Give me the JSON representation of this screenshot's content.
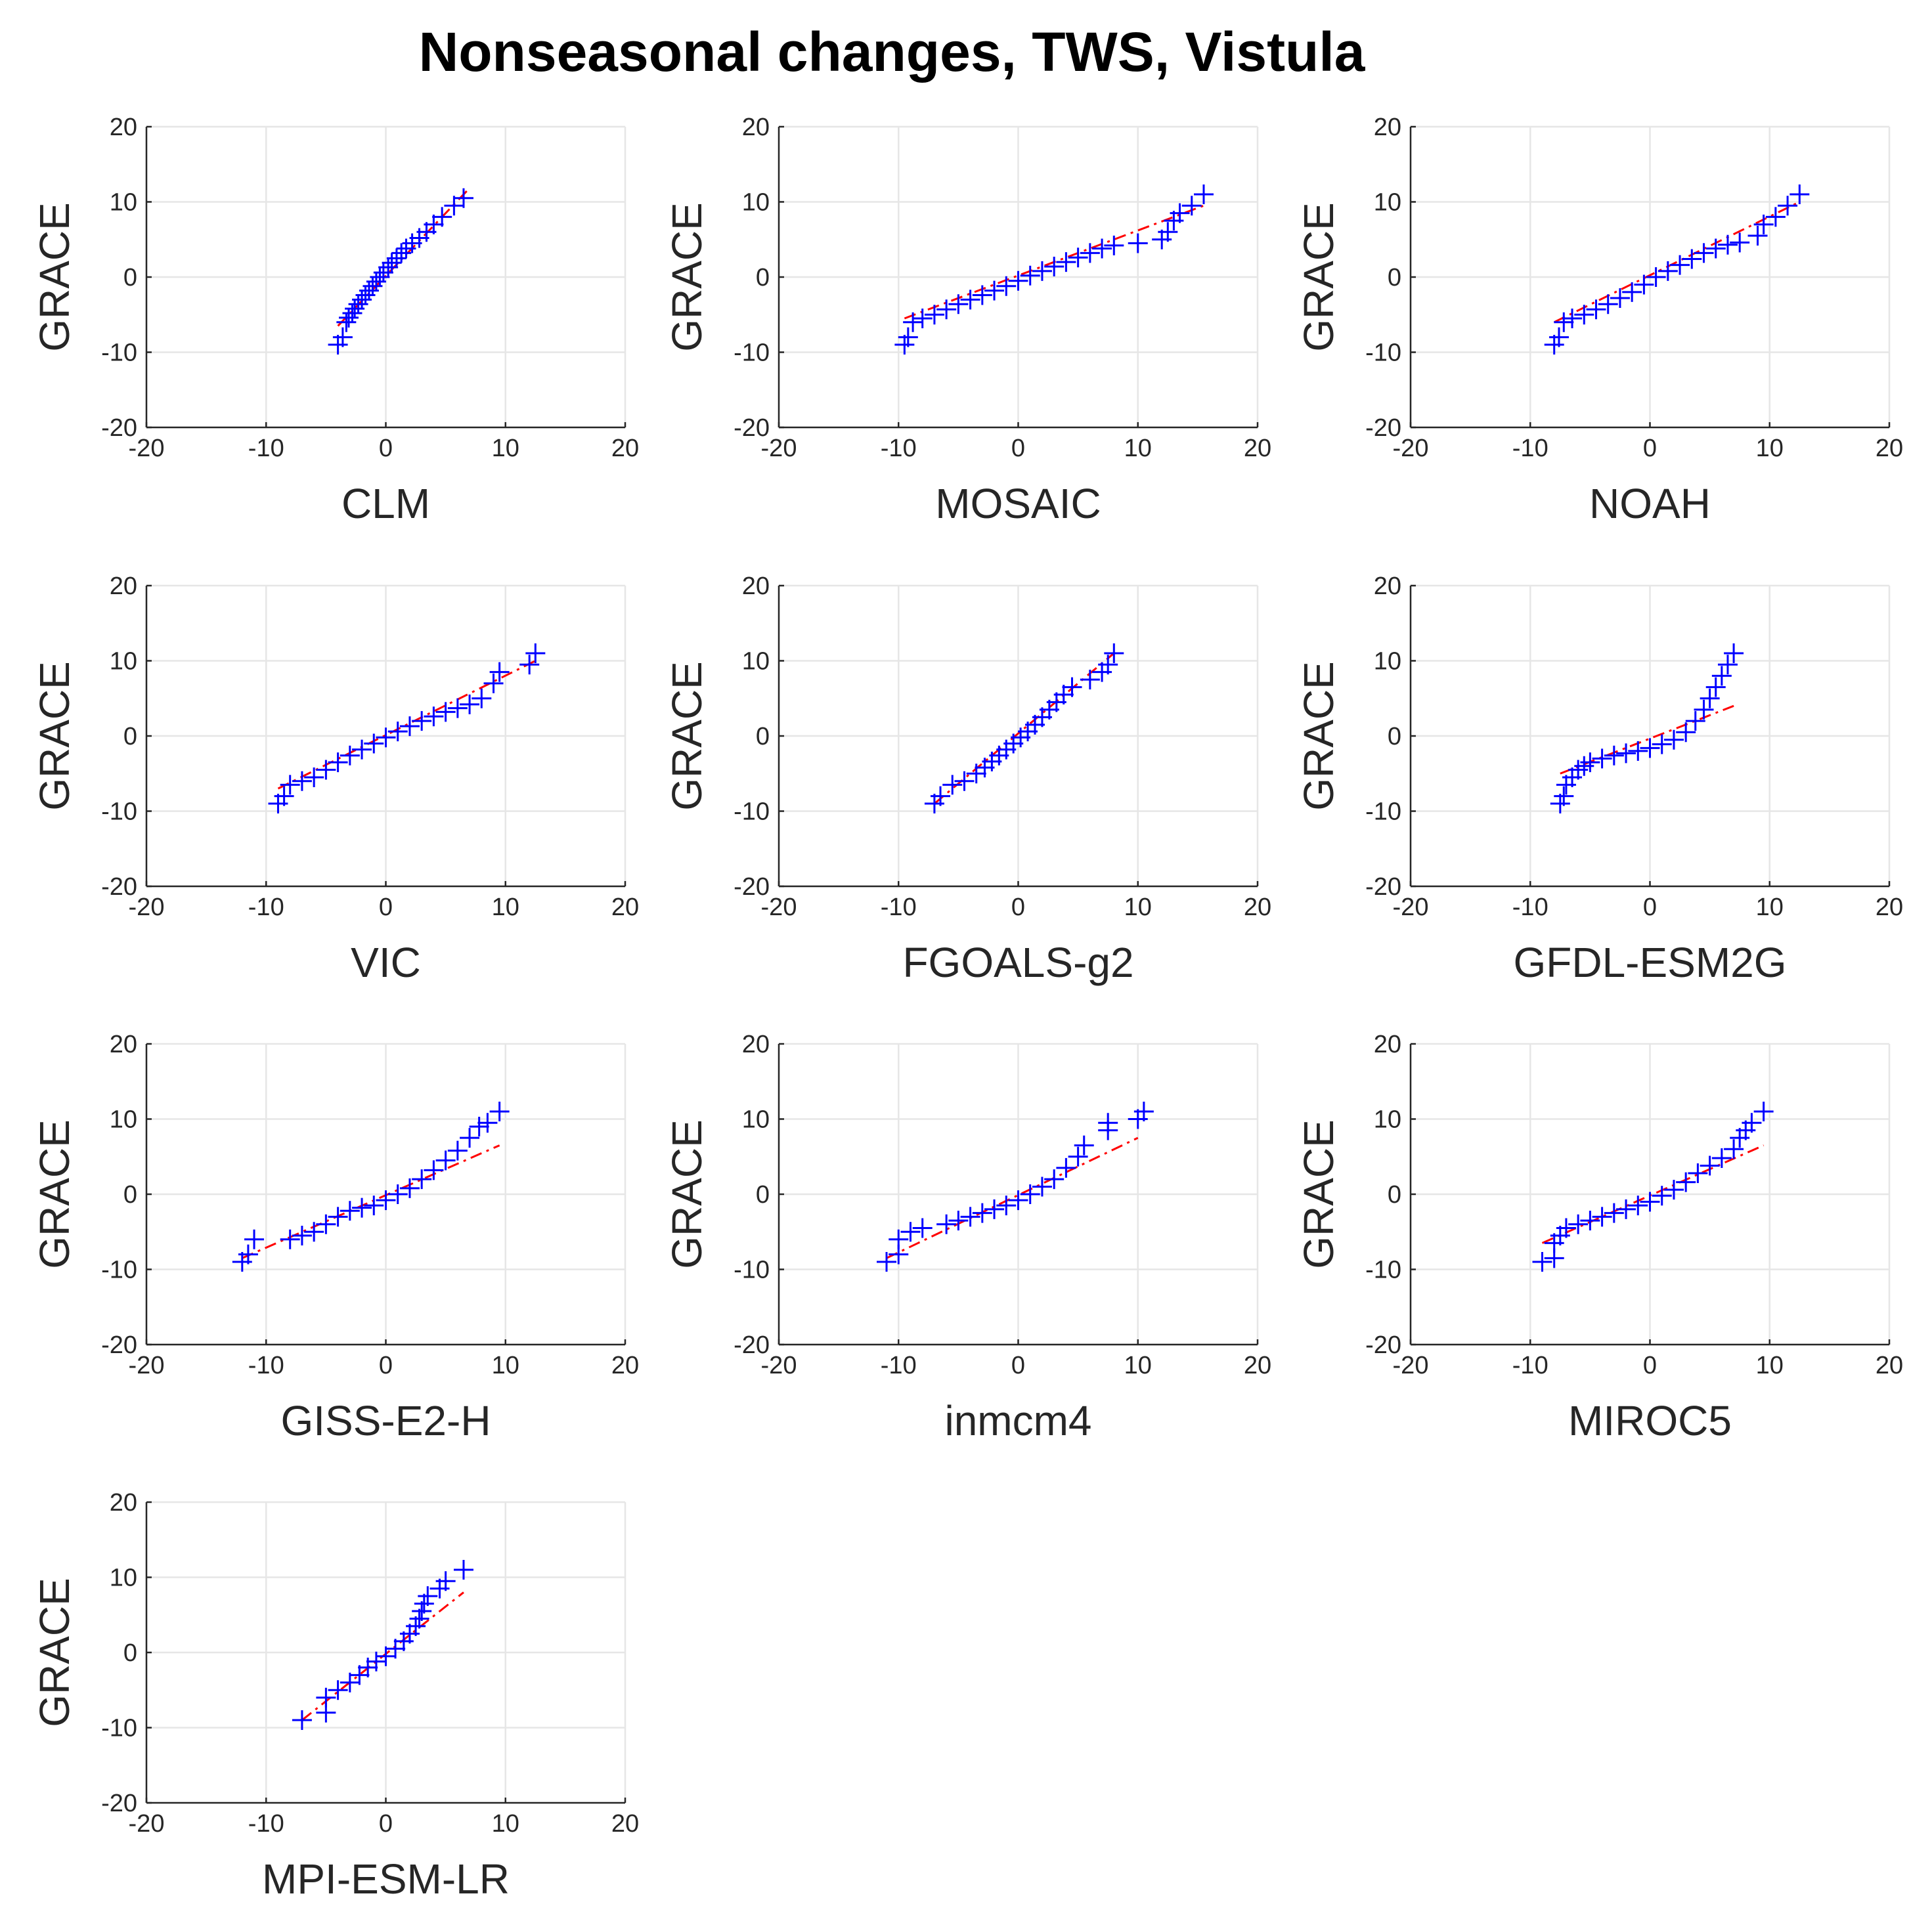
{
  "figure_title": "Nonseasonal changes, TWS, Vistula",
  "colors": {
    "markers": "#0000ff",
    "fit_line": "#ff0000",
    "grid": "#e6e6e6",
    "axis": "#262626"
  },
  "chart_data": [
    {
      "type": "scatter",
      "subtype": "qq-plot",
      "xlabel": "CLM",
      "ylabel": "GRACE",
      "xlim": [
        -20,
        20
      ],
      "ylim": [
        -20,
        20
      ],
      "xticks": [
        -20,
        -10,
        0,
        10,
        20
      ],
      "yticks": [
        -20,
        -10,
        0,
        10,
        20
      ],
      "grid": true,
      "fit_line": [
        [
          -4,
          -6.5
        ],
        [
          6.8,
          11.5
        ]
      ],
      "points": [
        [
          -4,
          -9
        ],
        [
          -3.6,
          -8
        ],
        [
          -3.3,
          -6
        ],
        [
          -3.1,
          -5.4
        ],
        [
          -2.8,
          -4.8
        ],
        [
          -2.6,
          -4.2
        ],
        [
          -2.3,
          -3.6
        ],
        [
          -2,
          -3
        ],
        [
          -1.7,
          -2.4
        ],
        [
          -1.4,
          -1.8
        ],
        [
          -1.1,
          -1.2
        ],
        [
          -0.8,
          -0.6
        ],
        [
          -0.5,
          0
        ],
        [
          -0.2,
          0.6
        ],
        [
          0.2,
          1.3
        ],
        [
          0.5,
          1.9
        ],
        [
          0.9,
          2.5
        ],
        [
          1.3,
          3.2
        ],
        [
          1.7,
          3.8
        ],
        [
          2.2,
          4.5
        ],
        [
          2.8,
          5.2
        ],
        [
          3.4,
          6
        ],
        [
          4,
          7
        ],
        [
          4.7,
          8
        ],
        [
          5.7,
          9.5
        ],
        [
          6.5,
          10.5
        ]
      ]
    },
    {
      "type": "scatter",
      "subtype": "qq-plot",
      "xlabel": "MOSAIC",
      "ylabel": "GRACE",
      "xlim": [
        -20,
        20
      ],
      "ylim": [
        -20,
        20
      ],
      "xticks": [
        -20,
        -10,
        0,
        10,
        20
      ],
      "yticks": [
        -20,
        -10,
        0,
        10,
        20
      ],
      "grid": true,
      "fit_line": [
        [
          -9.5,
          -5.5
        ],
        [
          15.5,
          9.5
        ]
      ],
      "points": [
        [
          -9.5,
          -9
        ],
        [
          -9.2,
          -8
        ],
        [
          -8.8,
          -6
        ],
        [
          -8,
          -5.5
        ],
        [
          -7,
          -5
        ],
        [
          -6,
          -4.3
        ],
        [
          -5,
          -3.6
        ],
        [
          -4,
          -3
        ],
        [
          -3,
          -2.4
        ],
        [
          -2,
          -1.8
        ],
        [
          -1,
          -1.2
        ],
        [
          0,
          -0.5
        ],
        [
          1,
          0.2
        ],
        [
          2,
          0.8
        ],
        [
          3,
          1.4
        ],
        [
          4,
          2
        ],
        [
          5,
          2.6
        ],
        [
          6,
          3.2
        ],
        [
          7,
          3.8
        ],
        [
          8,
          4.2
        ],
        [
          10,
          4.5
        ],
        [
          12,
          5
        ],
        [
          12.5,
          6
        ],
        [
          13,
          7.5
        ],
        [
          13.5,
          8.5
        ],
        [
          14.5,
          9.5
        ],
        [
          15.5,
          11
        ]
      ]
    },
    {
      "type": "scatter",
      "subtype": "qq-plot",
      "xlabel": "NOAH",
      "ylabel": "GRACE",
      "xlim": [
        -20,
        20
      ],
      "ylim": [
        -20,
        20
      ],
      "xticks": [
        -20,
        -10,
        0,
        10,
        20
      ],
      "yticks": [
        -20,
        -10,
        0,
        10,
        20
      ],
      "grid": true,
      "fit_line": [
        [
          -8,
          -6
        ],
        [
          12.5,
          10
        ]
      ],
      "points": [
        [
          -8,
          -9
        ],
        [
          -7.6,
          -8
        ],
        [
          -7.2,
          -6
        ],
        [
          -6.5,
          -5.5
        ],
        [
          -5.5,
          -5
        ],
        [
          -4.5,
          -4.3
        ],
        [
          -3.5,
          -3.6
        ],
        [
          -2.5,
          -2.8
        ],
        [
          -1.5,
          -2
        ],
        [
          -0.5,
          -1
        ],
        [
          0.5,
          0
        ],
        [
          1.5,
          0.8
        ],
        [
          2.5,
          1.6
        ],
        [
          3.5,
          2.4
        ],
        [
          4.5,
          3.2
        ],
        [
          5.5,
          3.8
        ],
        [
          6.5,
          4.3
        ],
        [
          7.5,
          4.6
        ],
        [
          9,
          5.5
        ],
        [
          9.5,
          7
        ],
        [
          10.5,
          8
        ],
        [
          11.5,
          9.5
        ],
        [
          12.5,
          11
        ]
      ]
    },
    {
      "type": "scatter",
      "subtype": "qq-plot",
      "xlabel": "VIC",
      "ylabel": "GRACE",
      "xlim": [
        -20,
        20
      ],
      "ylim": [
        -20,
        20
      ],
      "xticks": [
        -20,
        -10,
        0,
        10,
        20
      ],
      "yticks": [
        -20,
        -10,
        0,
        10,
        20
      ],
      "grid": true,
      "fit_line": [
        [
          -9,
          -7
        ],
        [
          12.5,
          10
        ]
      ],
      "points": [
        [
          -9,
          -9
        ],
        [
          -8.5,
          -8
        ],
        [
          -8,
          -6.5
        ],
        [
          -7,
          -6
        ],
        [
          -6,
          -5.5
        ],
        [
          -5,
          -4.5
        ],
        [
          -4,
          -3.5
        ],
        [
          -3,
          -2.6
        ],
        [
          -2,
          -1.8
        ],
        [
          -1,
          -1
        ],
        [
          0,
          -0.2
        ],
        [
          1,
          0.6
        ],
        [
          2,
          1.3
        ],
        [
          3,
          2
        ],
        [
          4,
          2.6
        ],
        [
          5,
          3.2
        ],
        [
          6,
          3.7
        ],
        [
          7,
          4.2
        ],
        [
          8,
          5
        ],
        [
          9,
          7
        ],
        [
          9.5,
          8.5
        ],
        [
          12,
          9.5
        ],
        [
          12.5,
          11
        ]
      ]
    },
    {
      "type": "scatter",
      "subtype": "qq-plot",
      "xlabel": "FGOALS-g2",
      "ylabel": "GRACE",
      "xlim": [
        -20,
        20
      ],
      "ylim": [
        -20,
        20
      ],
      "xticks": [
        -20,
        -10,
        0,
        10,
        20
      ],
      "yticks": [
        -20,
        -10,
        0,
        10,
        20
      ],
      "grid": true,
      "fit_line": [
        [
          -7,
          -9
        ],
        [
          8,
          11
        ]
      ],
      "points": [
        [
          -7,
          -9
        ],
        [
          -6.5,
          -8
        ],
        [
          -5.5,
          -6.5
        ],
        [
          -4.5,
          -6
        ],
        [
          -3.5,
          -5
        ],
        [
          -2.8,
          -4.2
        ],
        [
          -2.2,
          -3.4
        ],
        [
          -1.6,
          -2.6
        ],
        [
          -1,
          -1.8
        ],
        [
          -0.4,
          -1
        ],
        [
          0.2,
          -0.2
        ],
        [
          0.8,
          0.6
        ],
        [
          1.4,
          1.5
        ],
        [
          2,
          2.5
        ],
        [
          2.6,
          3.5
        ],
        [
          3.2,
          4.5
        ],
        [
          3.8,
          5.5
        ],
        [
          4.5,
          6.5
        ],
        [
          6,
          7.5
        ],
        [
          7,
          8.5
        ],
        [
          7.5,
          9.5
        ],
        [
          8,
          11
        ]
      ]
    },
    {
      "type": "scatter",
      "subtype": "qq-plot",
      "xlabel": "GFDL-ESM2G",
      "ylabel": "GRACE",
      "xlim": [
        -20,
        20
      ],
      "ylim": [
        -20,
        20
      ],
      "xticks": [
        -20,
        -10,
        0,
        10,
        20
      ],
      "yticks": [
        -20,
        -10,
        0,
        10,
        20
      ],
      "grid": true,
      "fit_line": [
        [
          -7.5,
          -5
        ],
        [
          7,
          4
        ]
      ],
      "points": [
        [
          -7.5,
          -9
        ],
        [
          -7.2,
          -8
        ],
        [
          -7,
          -6.5
        ],
        [
          -6.5,
          -5.5
        ],
        [
          -6,
          -4.5
        ],
        [
          -5.5,
          -4
        ],
        [
          -5,
          -3.5
        ],
        [
          -4,
          -3
        ],
        [
          -3,
          -2.6
        ],
        [
          -2,
          -2.3
        ],
        [
          -1,
          -2
        ],
        [
          0,
          -1.6
        ],
        [
          1,
          -1.1
        ],
        [
          2,
          -0.5
        ],
        [
          3,
          0.5
        ],
        [
          3.8,
          2
        ],
        [
          4.5,
          3.5
        ],
        [
          5,
          5
        ],
        [
          5.5,
          6.5
        ],
        [
          6,
          8
        ],
        [
          6.5,
          9.5
        ],
        [
          7,
          11
        ]
      ]
    },
    {
      "type": "scatter",
      "subtype": "qq-plot",
      "xlabel": "GISS-E2-H",
      "ylabel": "GRACE",
      "xlim": [
        -20,
        20
      ],
      "ylim": [
        -20,
        20
      ],
      "xticks": [
        -20,
        -10,
        0,
        10,
        20
      ],
      "yticks": [
        -20,
        -10,
        0,
        10,
        20
      ],
      "grid": true,
      "fit_line": [
        [
          -12,
          -8.5
        ],
        [
          9.5,
          6.5
        ]
      ],
      "points": [
        [
          -12,
          -9
        ],
        [
          -11.5,
          -8
        ],
        [
          -11,
          -6
        ],
        [
          -8,
          -6
        ],
        [
          -7,
          -5.5
        ],
        [
          -6,
          -5
        ],
        [
          -5,
          -4
        ],
        [
          -4,
          -3
        ],
        [
          -3,
          -2.2
        ],
        [
          -2,
          -1.8
        ],
        [
          -1,
          -1.5
        ],
        [
          0,
          -0.8
        ],
        [
          1,
          0
        ],
        [
          2,
          0.8
        ],
        [
          3,
          2
        ],
        [
          4,
          3.2
        ],
        [
          5,
          4.5
        ],
        [
          6,
          5.8
        ],
        [
          7,
          7.5
        ],
        [
          7.8,
          9
        ],
        [
          8.5,
          9.5
        ],
        [
          9.5,
          11
        ]
      ]
    },
    {
      "type": "scatter",
      "subtype": "qq-plot",
      "xlabel": "inmcm4",
      "ylabel": "GRACE",
      "xlim": [
        -20,
        20
      ],
      "ylim": [
        -20,
        20
      ],
      "xticks": [
        -20,
        -10,
        0,
        10,
        20
      ],
      "yticks": [
        -20,
        -10,
        0,
        10,
        20
      ],
      "grid": true,
      "fit_line": [
        [
          -11,
          -8.5
        ],
        [
          10,
          7.5
        ]
      ],
      "points": [
        [
          -11,
          -9
        ],
        [
          -10,
          -8
        ],
        [
          -10,
          -6
        ],
        [
          -9,
          -5
        ],
        [
          -8,
          -4.5
        ],
        [
          -6,
          -4
        ],
        [
          -5,
          -3.5
        ],
        [
          -4,
          -3
        ],
        [
          -3,
          -2.5
        ],
        [
          -2,
          -2
        ],
        [
          -1,
          -1.5
        ],
        [
          0,
          -0.8
        ],
        [
          1,
          0
        ],
        [
          2,
          1
        ],
        [
          3,
          2
        ],
        [
          4,
          3.5
        ],
        [
          5,
          5
        ],
        [
          5.5,
          6.5
        ],
        [
          7.5,
          8.5
        ],
        [
          7.5,
          9.5
        ],
        [
          10,
          10
        ],
        [
          10.5,
          11
        ]
      ]
    },
    {
      "type": "scatter",
      "subtype": "qq-plot",
      "xlabel": "MIROC5",
      "ylabel": "GRACE",
      "xlim": [
        -20,
        20
      ],
      "ylim": [
        -20,
        20
      ],
      "xticks": [
        -20,
        -10,
        0,
        10,
        20
      ],
      "yticks": [
        -20,
        -10,
        0,
        10,
        20
      ],
      "grid": true,
      "fit_line": [
        [
          -9,
          -6.5
        ],
        [
          9.5,
          6.5
        ]
      ],
      "points": [
        [
          -9,
          -9
        ],
        [
          -8,
          -8.5
        ],
        [
          -8,
          -6.5
        ],
        [
          -7.5,
          -5.5
        ],
        [
          -7,
          -4.5
        ],
        [
          -6,
          -4
        ],
        [
          -5,
          -3.5
        ],
        [
          -4,
          -3
        ],
        [
          -3,
          -2.5
        ],
        [
          -2,
          -2
        ],
        [
          -1,
          -1.5
        ],
        [
          0,
          -1
        ],
        [
          1,
          -0.2
        ],
        [
          2,
          0.6
        ],
        [
          3,
          1.6
        ],
        [
          4,
          2.8
        ],
        [
          5,
          3.8
        ],
        [
          6,
          4.8
        ],
        [
          7,
          6
        ],
        [
          7.5,
          7.5
        ],
        [
          8,
          8.5
        ],
        [
          8.5,
          9.5
        ],
        [
          9.5,
          11
        ]
      ]
    },
    {
      "type": "scatter",
      "subtype": "qq-plot",
      "xlabel": "MPI-ESM-LR",
      "ylabel": "GRACE",
      "xlim": [
        -20,
        20
      ],
      "ylim": [
        -20,
        20
      ],
      "xticks": [
        -20,
        -10,
        0,
        10,
        20
      ],
      "yticks": [
        -20,
        -10,
        0,
        10,
        20
      ],
      "grid": true,
      "fit_line": [
        [
          -7,
          -9
        ],
        [
          6.5,
          8
        ]
      ],
      "points": [
        [
          -7,
          -9
        ],
        [
          -5,
          -8
        ],
        [
          -5,
          -6
        ],
        [
          -4,
          -5
        ],
        [
          -3,
          -4
        ],
        [
          -2.2,
          -3
        ],
        [
          -1.5,
          -2
        ],
        [
          -0.8,
          -1.2
        ],
        [
          0,
          -0.5
        ],
        [
          0.8,
          0.5
        ],
        [
          1.5,
          1.5
        ],
        [
          2,
          2.5
        ],
        [
          2.5,
          3.5
        ],
        [
          2.8,
          4.5
        ],
        [
          3,
          5.5
        ],
        [
          3.2,
          6.5
        ],
        [
          3.5,
          7.5
        ],
        [
          4.5,
          8.5
        ],
        [
          5,
          9.5
        ],
        [
          6.5,
          11
        ]
      ]
    }
  ]
}
